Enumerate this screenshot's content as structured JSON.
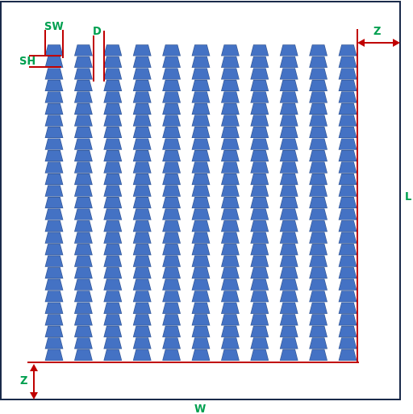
{
  "labels": {
    "sw": "SW",
    "sh": "SH",
    "d": "D",
    "z_top": "Z",
    "z_bottom": "Z",
    "l": "L",
    "w": "W"
  },
  "grid": {
    "columns": 11,
    "rows": 27
  },
  "colors": {
    "frame": "#1a2a4a",
    "tooth_fill": "#4472c4",
    "tooth_stroke": "#2f528f",
    "dimension": "#c00000",
    "label": "#00a050"
  }
}
